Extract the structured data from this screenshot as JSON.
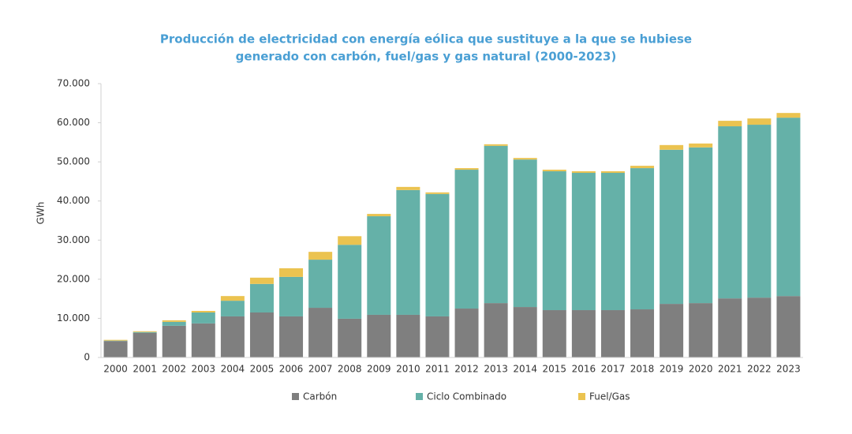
{
  "chart_data": {
    "type": "stacked_bar",
    "title": [
      "Producción de electricidad con energía eólica que sustituye a la que se hubiese",
      "generado con carbón, fuel/gas y gas natural (2000-2023)"
    ],
    "y_label": "GWh",
    "categories": [
      "2000",
      "2001",
      "2002",
      "2003",
      "2004",
      "2005",
      "2006",
      "2007",
      "2008",
      "2009",
      "2010",
      "2011",
      "2012",
      "2013",
      "2014",
      "2015",
      "2016",
      "2017",
      "2018",
      "2019",
      "2020",
      "2021",
      "2022",
      "2023"
    ],
    "series": [
      {
        "name": "Carbón",
        "color": "#7f7f7f",
        "values": [
          4200,
          6300,
          8100,
          8700,
          10500,
          11500,
          10500,
          12700,
          9900,
          10900,
          10900,
          10500,
          12500,
          13900,
          12900,
          12100,
          12100,
          12100,
          12300,
          13700,
          13900,
          15100,
          15300,
          15700
        ]
      },
      {
        "name": "Ciclo Combinado",
        "color": "#65b1a8",
        "values": [
          100,
          200,
          1000,
          2800,
          4000,
          7300,
          10100,
          12300,
          18900,
          25200,
          31900,
          31300,
          35500,
          40200,
          37700,
          35500,
          35100,
          35100,
          36100,
          39400,
          39800,
          44000,
          44200,
          45600
        ]
      },
      {
        "name": "Fuel/Gas",
        "color": "#ebc350",
        "values": [
          200,
          200,
          400,
          400,
          1200,
          1600,
          2200,
          2000,
          2200,
          600,
          800,
          400,
          400,
          400,
          400,
          400,
          400,
          400,
          600,
          1200,
          1000,
          1400,
          1600,
          1200
        ]
      }
    ],
    "ylim": [
      0,
      70000
    ],
    "yticks": [
      0,
      {
        "value": 10000,
        "label": "10.000"
      },
      {
        "value": 20000,
        "label": "20.000"
      },
      {
        "value": 30000,
        "label": "30.000"
      },
      {
        "value": 40000,
        "label": "40.000"
      },
      {
        "value": 50000,
        "label": "50.000"
      },
      {
        "value": 60000,
        "label": "60.000"
      },
      {
        "value": 70000,
        "label": "70.000"
      }
    ],
    "grid": false
  }
}
